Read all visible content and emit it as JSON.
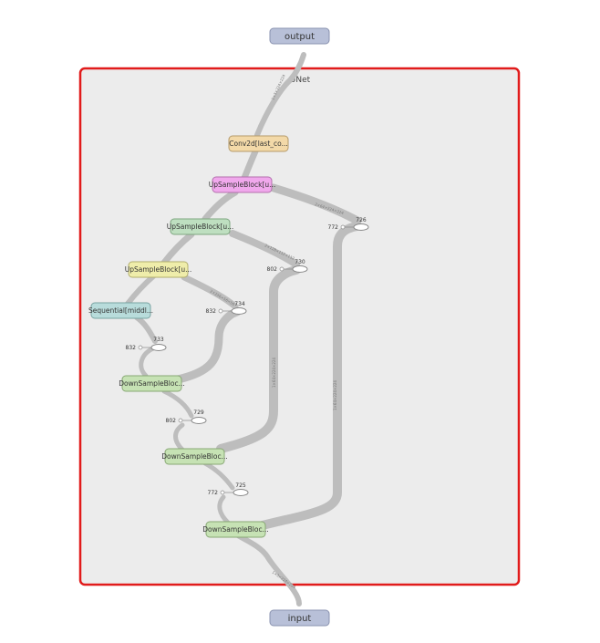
{
  "scope": {
    "title": "UNet",
    "border_color": "#e11b1b",
    "fill_color": "#ececec"
  },
  "io": {
    "output": "output",
    "input": "input",
    "color": "#b8c0d8"
  },
  "nodes": {
    "conv2d": "Conv2d[last_co...",
    "up1": "UpSampleBlock[u...",
    "up2": "UpSampleBlock[u...",
    "up3": "UpSampleBlock[u...",
    "sequential": "Sequential[middl...",
    "down3": "DownSampleBloc...",
    "down2": "DownSampleBloc...",
    "down1": "DownSampleBloc..."
  },
  "node_colors": {
    "conv2d": "#f3d9a8",
    "up1": "#f0a8ec",
    "up2": "#bedfc0",
    "up3": "#efedaa",
    "sequential": "#b8dcdb",
    "down": "#c6e2b4"
  },
  "ops": {
    "op726": {
      "id": "726",
      "count": "772"
    },
    "op730": {
      "id": "730",
      "count": "802"
    },
    "op734": {
      "id": "734",
      "count": "832"
    },
    "op733": {
      "id": "733",
      "count": "832"
    },
    "op729": {
      "id": "729",
      "count": "802"
    },
    "op725": {
      "id": "725",
      "count": "772"
    }
  }
}
